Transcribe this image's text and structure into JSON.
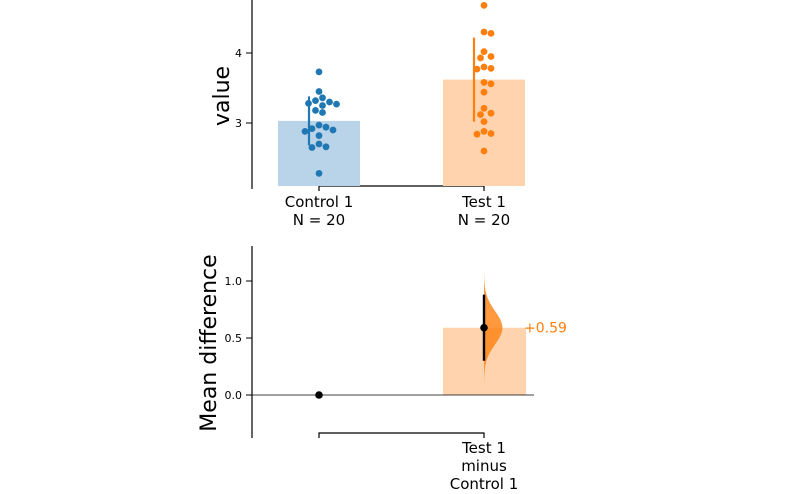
{
  "chart_data": [
    {
      "type": "bar+swarm",
      "title": "",
      "ylabel": "value",
      "ylim": [
        2.0,
        4.8
      ],
      "yticks": [
        3,
        4
      ],
      "groups": [
        {
          "name": "Control 1",
          "n_label": "N = 20",
          "color": "#1f77b4",
          "bar_color": "#b9d4e9",
          "mean": 3.03,
          "ci": [
            2.68,
            3.38
          ],
          "points": [
            3.73,
            3.45,
            3.36,
            3.32,
            3.3,
            3.28,
            3.27,
            3.25,
            3.18,
            3.15,
            2.97,
            2.94,
            2.92,
            2.9,
            2.88,
            2.82,
            2.7,
            2.66,
            2.65,
            2.28
          ]
        },
        {
          "name": "Test 1",
          "n_label": "N = 20",
          "color": "#ff7f0e",
          "bar_color": "#ffd3ae",
          "mean": 3.62,
          "ci": [
            3.02,
            4.22
          ],
          "points": [
            4.68,
            4.3,
            4.28,
            4.02,
            3.95,
            3.93,
            3.8,
            3.78,
            3.77,
            3.58,
            3.56,
            3.44,
            3.21,
            3.14,
            3.12,
            3.02,
            2.88,
            2.85,
            2.84,
            2.6
          ]
        }
      ]
    },
    {
      "type": "effect-size",
      "ylabel": "Mean difference",
      "ylim": [
        -0.37,
        1.3
      ],
      "yticks": [
        "0.0",
        "0.5",
        "1.0"
      ],
      "reference": {
        "name": "Control 1",
        "value": 0.0
      },
      "comparison": {
        "label_lines": [
          "Test 1",
          "minus",
          "Control 1"
        ],
        "mean_difference": 0.59,
        "ci": [
          0.3,
          0.88
        ],
        "bar_color": "#ffd3ae",
        "dist_color": "#ff7f0e",
        "distribution_range": [
          0.1,
          1.08
        ],
        "annotation": "+0.59"
      }
    }
  ]
}
